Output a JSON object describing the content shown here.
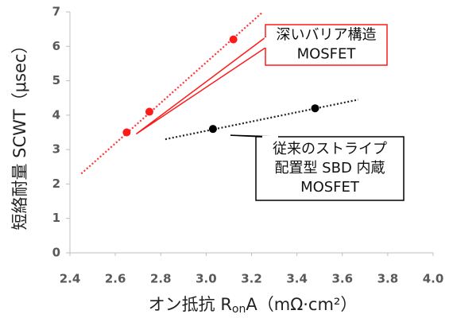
{
  "chart_data": {
    "type": "scatter",
    "ylabel": "短絡耐量 SCWT（μsec）",
    "xlabel": {
      "main": "オン抵抗 R",
      "sub": "on",
      "end": "A（mΩ·cm²）"
    },
    "xlim": [
      2.4,
      4.0
    ],
    "xticks": [
      2.4,
      2.6,
      2.8,
      {
        "value": 3.0,
        "label": "3.0"
      },
      3.2,
      3.4,
      3.6,
      3.8,
      {
        "value": 4.0,
        "label": "4.0"
      }
    ],
    "ylim": [
      0,
      7
    ],
    "yticks": [
      0,
      1,
      2,
      3,
      4,
      5,
      6,
      7
    ],
    "grid": false,
    "series": [
      {
        "color": "#ff1a1a",
        "x": [
          2.65,
          2.75,
          3.12
        ],
        "values": [
          3.5,
          4.1,
          6.2
        ]
      },
      {
        "color": "#000000",
        "x": [
          3.03,
          3.48
        ],
        "values": [
          3.6,
          4.2
        ]
      }
    ],
    "trendlines": [
      {
        "color": "#ff3333",
        "x": [
          2.45,
          3.25
        ],
        "values": [
          2.3,
          7.0
        ]
      },
      {
        "color": "#222222",
        "x": [
          2.82,
          3.67
        ],
        "values": [
          3.3,
          4.45
        ]
      }
    ],
    "annotations": [
      {
        "lines": [
          "深いバリア構造",
          "MOSFET"
        ],
        "color": "#ff1a1a"
      },
      {
        "lines": [
          "従来のストライプ",
          "配置型 SBD 内蔵",
          "MOSFET"
        ],
        "color": "#000000"
      }
    ]
  }
}
